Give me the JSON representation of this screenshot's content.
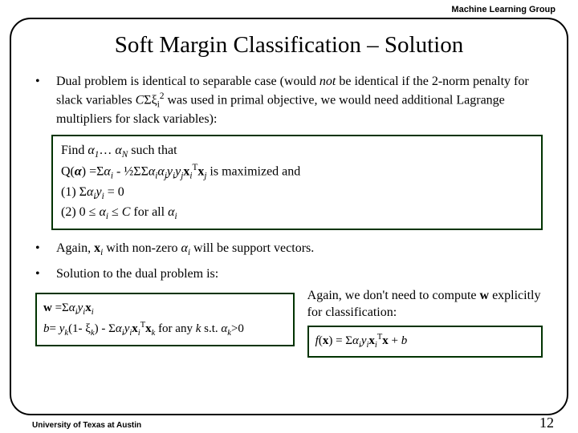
{
  "header": {
    "group_label": "Machine Learning Group"
  },
  "title": "Soft Margin Classification – Solution",
  "bullets": {
    "b1_pre": "Dual problem is identical to separable case (would ",
    "b1_not": "not",
    "b1_post1": " be identical if the 2-norm penalty for slack variables ",
    "b1_c": "C",
    "b1_sigma": "Σξ",
    "b1_isub": "i",
    "b1_sq": "2",
    "b1_post2": " was used in primal objective, we would need additional Lagrange multipliers for slack variables):"
  },
  "box1": {
    "l1a": "Find ",
    "l1_a1": "α",
    "l1_1": "1",
    "l1_dots": "… ",
    "l1_aN": "α",
    "l1_N": "N",
    "l1_tail": " such that",
    "l2a": "Q(",
    "l2_alpha": "α",
    "l2b": ") =Σ",
    "l2_ai": "α",
    "l2_i": "i",
    "l2c": " - ½ΣΣ",
    "l2_ai2": "α",
    "l2_i2": "i",
    "l2_aj": "α",
    "l2_j": "j",
    "l2_yi": "y",
    "l2_yi_i": "i",
    "l2_yj": "y",
    "l2_yj_j": "j",
    "l2_xi": "x",
    "l2_xi_i": "i",
    "l2_T": "T",
    "l2_xj": "x",
    "l2_xj_j": "j",
    "l2_tail": " is maximized and",
    "l3": "(1)  Σ",
    "l3_a": "α",
    "l3_i": "i",
    "l3_y": "y",
    "l3_yi": "i",
    "l3_tail": " = 0",
    "l4": "(2)  0 ≤ ",
    "l4_a": "α",
    "l4_i": "i",
    "l4_mid": " ≤ ",
    "l4_C": "C",
    "l4_tail": " for all ",
    "l4_a2": "α",
    "l4_i2": "i"
  },
  "lower": {
    "b2a": "Again, ",
    "b2_x": "x",
    "b2_i": "i",
    "b2_mid": " with non-zero ",
    "b2_a": "α",
    "b2_ai": "i",
    "b2_tail": " will be support vectors.",
    "b3": "Solution to the dual problem is:"
  },
  "box2": {
    "l1a": "w",
    "l1b": " =Σ",
    "l1_a": "α",
    "l1_i": "i",
    "l1_y": "y",
    "l1_yi": "i",
    "l1_x": "x",
    "l1_xi": "i",
    "l2a": "b",
    "l2b": "= ",
    "l2_y": "y",
    "l2_k": "k",
    "l2_mid1": "(1- ξ",
    "l2_k2": "k",
    "l2_mid2": ") - Σ",
    "l2_a": "α",
    "l2_i": "i",
    "l2_y2": "y",
    "l2_yi": "i",
    "l2_x": "x",
    "l2_xi": "i",
    "l2_T": "T",
    "l2_xk": "x",
    "l2_xk_k": "k",
    "l2_tail": "    for any ",
    "l2_kvar": "k",
    "l2_st": " s.t. ",
    "l2_ak": "α",
    "l2_ak_k": "k",
    "l2_gt": ">0"
  },
  "right": {
    "p1": "Again, we don't need to compute ",
    "p1_w": "w",
    "p1_tail": " explicitly for classification:"
  },
  "box3": {
    "a": "f",
    "b": "(",
    "x": "x",
    "c": ") = Σ",
    "ai": "α",
    "aii": "i",
    "y": "y",
    "yi": "i",
    "xi": "x",
    "xii": "i",
    "T": "T",
    "xx": "x",
    "tail": " + ",
    "bvar": "b"
  },
  "footer": {
    "left": "University of Texas at Austin",
    "page": "12"
  },
  "colors": {
    "box_border": "#003300"
  }
}
